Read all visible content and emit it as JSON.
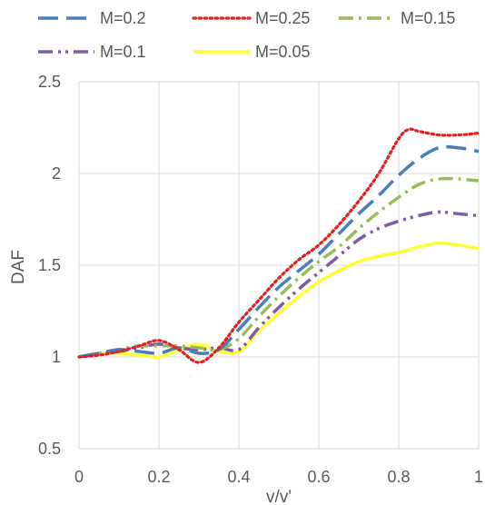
{
  "chart_data": {
    "type": "line",
    "xlabel": "v/v'",
    "ylabel": "DAF",
    "xlim": [
      0,
      1
    ],
    "ylim": [
      0.5,
      2.5
    ],
    "x_ticks": [
      "0",
      "0.2",
      "0.4",
      "0.6",
      "0.8",
      "1"
    ],
    "y_ticks": [
      "0.5",
      "1",
      "1.5",
      "2",
      "2.5"
    ],
    "grid": "vertical and horizontal major gridlines",
    "legend_position": "top",
    "series": [
      {
        "name": "M=0.2",
        "color": "#4a7ebb",
        "dash": "long-dash",
        "x": [
          0,
          0.05,
          0.1,
          0.15,
          0.2,
          0.25,
          0.3,
          0.35,
          0.4,
          0.45,
          0.5,
          0.55,
          0.6,
          0.65,
          0.7,
          0.75,
          0.8,
          0.85,
          0.9,
          0.95,
          1.0
        ],
        "y": [
          1.0,
          1.02,
          1.04,
          1.03,
          1.02,
          1.05,
          1.02,
          1.04,
          1.15,
          1.27,
          1.38,
          1.47,
          1.56,
          1.67,
          1.78,
          1.88,
          1.99,
          2.08,
          2.14,
          2.14,
          2.12
        ]
      },
      {
        "name": "M=0.25",
        "color": "#e32020",
        "dash": "dotted",
        "x": [
          0,
          0.05,
          0.1,
          0.15,
          0.2,
          0.25,
          0.3,
          0.35,
          0.4,
          0.45,
          0.5,
          0.55,
          0.6,
          0.65,
          0.7,
          0.75,
          0.8,
          0.825,
          0.85,
          0.9,
          0.95,
          1.0
        ],
        "y": [
          1.0,
          1.01,
          1.03,
          1.06,
          1.09,
          1.04,
          0.97,
          1.05,
          1.19,
          1.31,
          1.43,
          1.53,
          1.61,
          1.72,
          1.85,
          2.0,
          2.19,
          2.24,
          2.23,
          2.21,
          2.21,
          2.22
        ]
      },
      {
        "name": "M=0.15",
        "color": "#9bbb59",
        "dash": "dash-dot",
        "x": [
          0,
          0.05,
          0.1,
          0.15,
          0.2,
          0.25,
          0.3,
          0.35,
          0.4,
          0.45,
          0.5,
          0.55,
          0.6,
          0.65,
          0.7,
          0.75,
          0.8,
          0.85,
          0.9,
          0.95,
          1.0
        ],
        "y": [
          1.0,
          1.02,
          1.04,
          1.06,
          1.06,
          1.06,
          1.05,
          1.04,
          1.1,
          1.22,
          1.33,
          1.43,
          1.52,
          1.6,
          1.7,
          1.79,
          1.87,
          1.94,
          1.97,
          1.97,
          1.96
        ]
      },
      {
        "name": "M=0.1",
        "color": "#7e5ba6",
        "dash": "dash-dot-dot",
        "x": [
          0,
          0.05,
          0.1,
          0.15,
          0.2,
          0.25,
          0.3,
          0.35,
          0.4,
          0.45,
          0.5,
          0.55,
          0.6,
          0.65,
          0.7,
          0.75,
          0.8,
          0.85,
          0.9,
          0.95,
          1.0
        ],
        "y": [
          1.0,
          1.02,
          1.03,
          1.05,
          1.07,
          1.05,
          1.04,
          1.05,
          1.04,
          1.16,
          1.27,
          1.37,
          1.46,
          1.55,
          1.64,
          1.7,
          1.74,
          1.77,
          1.79,
          1.78,
          1.77
        ]
      },
      {
        "name": "M=0.05",
        "color": "#ffff33",
        "dash": "solid",
        "x": [
          0,
          0.05,
          0.1,
          0.15,
          0.2,
          0.25,
          0.3,
          0.35,
          0.4,
          0.45,
          0.5,
          0.55,
          0.6,
          0.65,
          0.7,
          0.75,
          0.8,
          0.85,
          0.9,
          0.95,
          1.0
        ],
        "y": [
          1.0,
          1.02,
          1.02,
          1.01,
          1.0,
          1.04,
          1.07,
          1.03,
          1.03,
          1.14,
          1.24,
          1.33,
          1.41,
          1.47,
          1.52,
          1.55,
          1.57,
          1.6,
          1.62,
          1.61,
          1.59
        ]
      }
    ]
  }
}
